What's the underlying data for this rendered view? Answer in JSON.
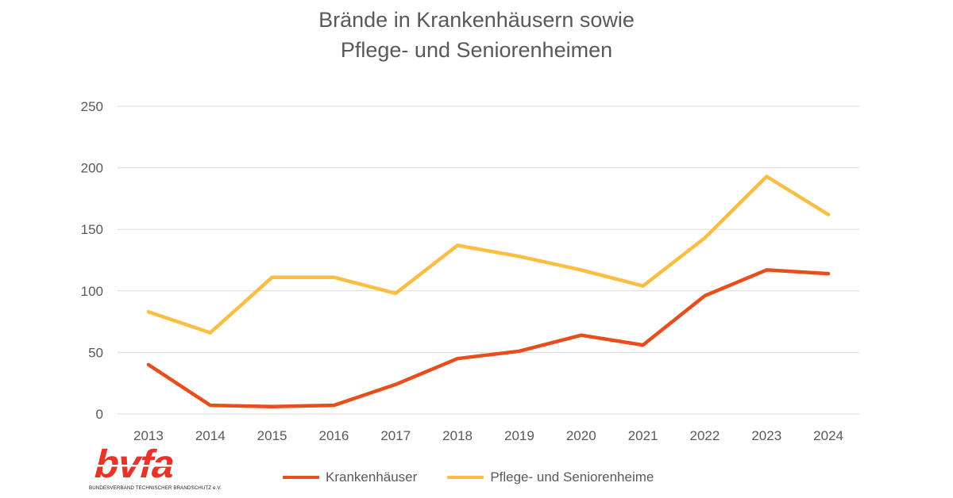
{
  "chart_data": {
    "type": "line",
    "title_lines": [
      "Brände in Krankenhäusern sowie",
      "Pflege- und Seniorenheimen"
    ],
    "categories": [
      "2013",
      "2014",
      "2015",
      "2016",
      "2017",
      "2018",
      "2019",
      "2020",
      "2021",
      "2022",
      "2023",
      "2024"
    ],
    "ylim": [
      0,
      250
    ],
    "yticks": [
      0,
      50,
      100,
      150,
      200,
      250
    ],
    "grid": true,
    "legend_position": "bottom",
    "series": [
      {
        "name": "Krankenhäuser",
        "color": "#E84E1B",
        "values": [
          40,
          7,
          6,
          7,
          24,
          45,
          51,
          64,
          56,
          96,
          117,
          114
        ]
      },
      {
        "name": "Pflege- und Seniorenheime",
        "color": "#FBBE43",
        "values": [
          83,
          66,
          111,
          111,
          98,
          137,
          128,
          117,
          104,
          143,
          193,
          162
        ]
      }
    ]
  },
  "logo": {
    "text": "bvfa",
    "subtitle": "BUNDESVERBAND TECHNISCHER BRANDSCHUTZ e.V.",
    "color": "#E8332A"
  }
}
